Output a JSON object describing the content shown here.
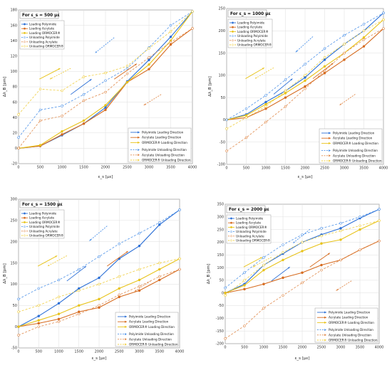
{
  "colors": {
    "polyimide": "#2b6fd6",
    "acrylate": "#d66b1f",
    "ormocer": "#e8c31a",
    "polyimide_unload": "#4f93e8",
    "acrylate_unload": "#e08a4c",
    "ormocer_unload": "#f0cf45"
  },
  "chart_data": [
    {
      "type": "line",
      "title": "For ε_s = 500 με",
      "xlabel": "ε_s [με]",
      "ylabel": "Δλ_B [pm]",
      "xlim": [
        0,
        4000
      ],
      "ylim": [
        -20,
        180
      ],
      "yticks": [
        -20,
        0,
        20,
        40,
        60,
        80,
        100,
        120,
        140,
        160,
        180
      ],
      "x": [
        0,
        500,
        1000,
        1500,
        2000,
        2500,
        3000,
        3500,
        4000
      ],
      "grid": true,
      "legend_placement": "top-left",
      "legend2_placement": "bottom-right",
      "series": [
        {
          "name": "Loading Polyimide",
          "values": [
            0,
            3,
            17,
            32,
            53,
            87,
            115,
            145,
            178
          ]
        },
        {
          "name": "Loading Acrylate",
          "values": [
            0,
            3,
            18,
            32,
            50,
            86,
            103,
            135,
            156
          ]
        },
        {
          "name": "Loading ORMOCER®",
          "values": [
            0,
            4,
            22,
            36,
            56,
            86,
            109,
            140,
            178
          ]
        },
        {
          "name": "Unloading Polyimide",
          "values": [
            14,
            50,
            55,
            70,
            88,
            104,
            131,
            160,
            178
          ]
        },
        {
          "name": "Unloading Acrylate",
          "values": [
            0,
            36,
            42,
            62,
            73,
            97,
            118,
            138,
            156
          ]
        },
        {
          "name": "Unloading ORMOCER®",
          "values": [
            44,
            77,
            75,
            93,
            98,
            107,
            130,
            152,
            178
          ]
        }
      ],
      "direction_legend": [
        "Polyimide Loading Direction",
        "Acrylate Loading Direction",
        "ORMOCER® Loading Direction",
        "Polyimide Unloading Direction",
        "Acrylate Unloading Direction",
        "ORMOCER® Unloading Direction"
      ]
    },
    {
      "type": "line",
      "title": "For ε_s = 1000 με",
      "xlabel": "ε_s [με]",
      "ylabel": "Δλ_B [pm]",
      "xlim": [
        0,
        4000
      ],
      "ylim": [
        -100,
        250
      ],
      "yticks": [
        -100,
        -50,
        0,
        50,
        100,
        150,
        200,
        250
      ],
      "x": [
        0,
        500,
        1000,
        1500,
        2000,
        2500,
        3000,
        3500,
        4000
      ],
      "grid": true,
      "legend_placement": "top-left",
      "legend2_placement": "bottom-right",
      "series": [
        {
          "name": "Loading Polyimide",
          "values": [
            0,
            12,
            40,
            65,
            95,
            135,
            170,
            200,
            240
          ]
        },
        {
          "name": "Loading Acrylate",
          "values": [
            0,
            5,
            25,
            50,
            75,
            105,
            135,
            165,
            205
          ]
        },
        {
          "name": "Loading ORMOCER®",
          "values": [
            0,
            10,
            35,
            60,
            88,
            120,
            150,
            185,
            225
          ]
        },
        {
          "name": "Unloading Polyimide",
          "values": [
            0,
            25,
            55,
            90,
            125,
            160,
            190,
            215,
            240
          ]
        },
        {
          "name": "Unloading Acrylate",
          "values": [
            -70,
            -40,
            -5,
            30,
            70,
            110,
            150,
            180,
            205
          ]
        },
        {
          "name": "Unloading ORMOCER®",
          "values": [
            -20,
            5,
            30,
            65,
            100,
            140,
            170,
            200,
            225
          ]
        }
      ],
      "direction_legend": [
        "Polyimide Loading Direction",
        "Acrylate Loading Direction",
        "ORMOCER® Loading Direction",
        "Polyimide Unloading Direction",
        "Acrylate Unloading Direction",
        "ORMOCER® Unloading Direction"
      ]
    },
    {
      "type": "line",
      "title": "For ε_s = 1500 με",
      "xlabel": "ε_s [με]",
      "ylabel": "Δλ_B [pm]",
      "xlim": [
        0,
        4000
      ],
      "ylim": [
        -50,
        300
      ],
      "yticks": [
        -50,
        0,
        50,
        100,
        150,
        200,
        250,
        300
      ],
      "x": [
        0,
        500,
        1000,
        1500,
        2000,
        2500,
        3000,
        3500,
        4000
      ],
      "grid": true,
      "legend_placement": "top-left",
      "legend2_placement": "bottom-right",
      "series": [
        {
          "name": "Loading Polyimide",
          "values": [
            0,
            25,
            55,
            90,
            115,
            160,
            190,
            240,
            275
          ]
        },
        {
          "name": "Loading Acrylate",
          "values": [
            0,
            8,
            18,
            35,
            45,
            70,
            85,
            110,
            135
          ]
        },
        {
          "name": "Loading ORMOCER®",
          "values": [
            0,
            15,
            30,
            50,
            65,
            90,
            110,
            135,
            160
          ]
        },
        {
          "name": "Unloading Polyimide",
          "values": [
            65,
            90,
            110,
            135,
            165,
            195,
            220,
            245,
            275
          ]
        },
        {
          "name": "Unloading Acrylate",
          "values": [
            -20,
            0,
            12,
            30,
            50,
            75,
            95,
            118,
            135
          ]
        },
        {
          "name": "Unloading ORMOCER®",
          "values": [
            35,
            50,
            70,
            85,
            100,
            118,
            135,
            150,
            160
          ]
        }
      ],
      "direction_legend": [
        "Polyimide Loading Direction",
        "Acrylate Loading Direction",
        "ORMOCER® Loading Direction",
        "Polyimide Unloading Direction",
        "Acrylate Unloading Direction",
        "ORMOCER® Unloading Direction"
      ]
    },
    {
      "type": "line",
      "title": "For ε_s = 2000 με",
      "xlabel": "ε_s [με]",
      "ylabel": "Δλ_B [pm]",
      "xlim": [
        0,
        4000
      ],
      "ylim": [
        -200,
        350
      ],
      "yticks": [
        -200,
        -150,
        -100,
        -50,
        0,
        50,
        100,
        150,
        200,
        250,
        300,
        350
      ],
      "x": [
        0,
        500,
        1000,
        1500,
        2000,
        2500,
        3000,
        3500,
        4000
      ],
      "grid": true,
      "legend_placement": "top-left",
      "legend2_placement": "bottom-right",
      "series": [
        {
          "name": "Loading Polyimide",
          "values": [
            0,
            35,
            110,
            155,
            200,
            230,
            255,
            295,
            330
          ]
        },
        {
          "name": "Loading Acrylate",
          "values": [
            0,
            15,
            35,
            60,
            80,
            110,
            130,
            170,
            205
          ]
        },
        {
          "name": "Loading ORMOCER®",
          "values": [
            0,
            30,
            90,
            130,
            165,
            195,
            210,
            250,
            285
          ]
        },
        {
          "name": "Unloading Polyimide",
          "values": [
            20,
            80,
            140,
            190,
            230,
            255,
            275,
            300,
            330
          ]
        },
        {
          "name": "Unloading Acrylate",
          "values": [
            -180,
            -130,
            -60,
            -10,
            40,
            90,
            130,
            170,
            205
          ]
        },
        {
          "name": "Unloading ORMOCER®",
          "values": [
            -10,
            50,
            110,
            160,
            200,
            225,
            245,
            265,
            285
          ]
        }
      ],
      "direction_legend": [
        "Polyimide Loading Direction",
        "Acrylate Loading Direction",
        "ORMOCER® Loading Direction",
        "Polyimide Unloading Direction",
        "Acrylate Unloading Direction",
        "ORMOCER® Unloading Direction"
      ]
    }
  ]
}
